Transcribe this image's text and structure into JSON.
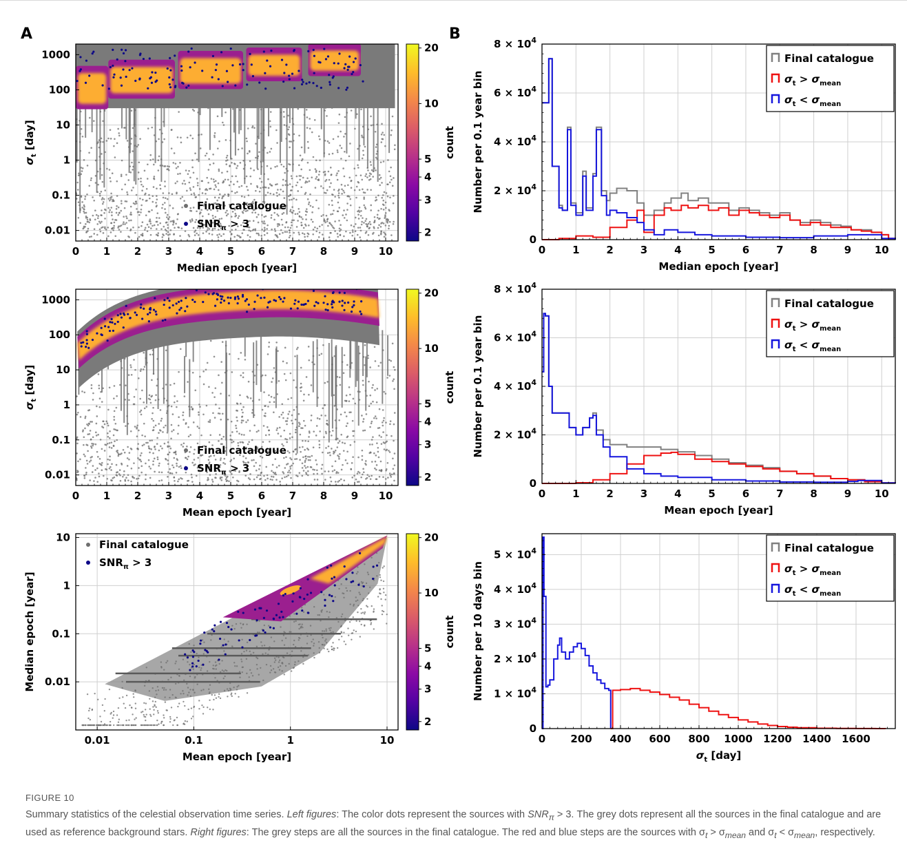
{
  "panel_labels": [
    "A",
    "B"
  ],
  "caption": {
    "figure_label": "FIGURE 10",
    "text_1": "Summary statistics of the celestial observation time series. ",
    "left_label": "Left figures",
    "text_2": ": The color dots represent the sources with ",
    "snr_label": "SNR",
    "snr_sub": "π",
    "text_3": " > 3. The grey dots represent all the sources in the final catalogue and are used as reference background stars. ",
    "right_label": "Right figures",
    "text_4": ": The grey steps are all the sources in the final catalogue. The red and blue steps are the sources with σ",
    "sub_t1": "t",
    "text_5": " > σ",
    "sub_mean1": "mean",
    "text_6": " and σ",
    "sub_t2": "t",
    "text_7": " < σ",
    "sub_mean2": "mean",
    "text_8": ", respectively."
  },
  "colors": {
    "grey_dots": "#6e6e6e",
    "snr_dots": "#0d0887",
    "grey_step": "#808080",
    "red_step": "#ee1111",
    "blue_step": "#1515dd",
    "colormap": [
      "#0d0887",
      "#5302a3",
      "#8b0aa5",
      "#b83289",
      "#db5c68",
      "#f48849",
      "#febd2a",
      "#f0f921"
    ],
    "core_color": "#fdad32"
  },
  "chart_data": [
    {
      "id": "A1",
      "type": "scatter",
      "xlabel": "Median epoch [year]",
      "ylabel": "σ_t [day]",
      "xscale": "linear",
      "yscale": "log",
      "xlim": [
        0,
        10.4
      ],
      "ylim": [
        0.005,
        2000
      ],
      "xticks": [
        "0",
        "1",
        "2",
        "3",
        "4",
        "5",
        "6",
        "7",
        "8",
        "9",
        "10"
      ],
      "yticks": [
        "1000",
        "100",
        "10",
        "1",
        "0.1",
        "0.01"
      ],
      "legend": [
        "Final catalogue",
        "SNR_π > 3"
      ],
      "legend_position": "bottom-center",
      "colorbar_label": "count",
      "colorbar_ticks": [
        "20",
        "10",
        "5",
        "4",
        "3",
        "2"
      ],
      "grid": true,
      "clusters": [
        {
          "x": [
            0.0,
            1.05
          ],
          "y": [
            40,
            300
          ]
        },
        {
          "x": [
            1.05,
            3.2
          ],
          "y": [
            80,
            450
          ]
        },
        {
          "x": [
            3.3,
            5.4
          ],
          "y": [
            150,
            800
          ]
        },
        {
          "x": [
            5.5,
            7.3
          ],
          "y": [
            250,
            1000
          ]
        },
        {
          "x": [
            7.5,
            9.2
          ],
          "y": [
            350,
            1300
          ]
        }
      ]
    },
    {
      "id": "A2",
      "type": "scatter",
      "xlabel": "Mean epoch [year]",
      "ylabel": "σ_t [day]",
      "xscale": "linear",
      "yscale": "log",
      "xlim": [
        0,
        10.4
      ],
      "ylim": [
        0.005,
        2000
      ],
      "xticks": [
        "0",
        "1",
        "2",
        "3",
        "4",
        "5",
        "6",
        "7",
        "8",
        "9",
        "10"
      ],
      "yticks": [
        "1000",
        "100",
        "10",
        "1",
        "0.1",
        "0.01"
      ],
      "legend": [
        "Final catalogue",
        "SNR_π > 3"
      ],
      "legend_position": "bottom-center",
      "colorbar_label": "count",
      "colorbar_ticks": [
        "20",
        "10",
        "5",
        "4",
        "3",
        "2"
      ],
      "grid": true
    },
    {
      "id": "A3",
      "type": "scatter",
      "xlabel": "Mean epoch [year]",
      "ylabel": "Median epoch [year]",
      "xscale": "log",
      "yscale": "log",
      "xlim": [
        0.006,
        13
      ],
      "ylim": [
        0.001,
        12
      ],
      "xticks": [
        "0.01",
        "0.1",
        "1",
        "10"
      ],
      "yticks": [
        "10",
        "1",
        "0.1",
        "0.01"
      ],
      "legend": [
        "Final catalogue",
        "SNR_π > 3"
      ],
      "legend_position": "top-left",
      "colorbar_label": "count",
      "colorbar_ticks": [
        "20",
        "10",
        "5",
        "4",
        "3",
        "2"
      ],
      "grid": true
    },
    {
      "id": "B1",
      "type": "line",
      "xlabel": "Median epoch [year]",
      "ylabel": "Number per 0.1 year bin",
      "xlim": [
        0,
        10.4
      ],
      "ylim": [
        0,
        80000
      ],
      "xticks": [
        "0",
        "1",
        "2",
        "3",
        "4",
        "5",
        "6",
        "7",
        "8",
        "9",
        "10"
      ],
      "yticks": [
        "8 × 10^4",
        "6 × 10^4",
        "4 × 10^4",
        "2 × 10^4",
        "0"
      ],
      "legend": [
        "Final catalogue",
        "σ_t > σ_mean",
        "σ_t < σ_mean"
      ],
      "legend_position": "top-right",
      "grid": true,
      "series": [
        {
          "name": "Final catalogue",
          "x": [
            0,
            0.2,
            0.3,
            0.5,
            0.6,
            0.75,
            0.85,
            1.0,
            1.2,
            1.3,
            1.5,
            1.6,
            1.75,
            1.9,
            2.0,
            2.2,
            2.5,
            2.8,
            3.0,
            3.3,
            3.6,
            3.8,
            4.1,
            4.3,
            4.6,
            4.9,
            5.2,
            5.5,
            5.8,
            6.1,
            6.4,
            6.7,
            7.0,
            7.3,
            7.6,
            7.9,
            8.2,
            8.5,
            8.8,
            9.1,
            9.4,
            9.7,
            10.0,
            10.2,
            10.4
          ],
          "y": [
            56000,
            74000,
            30000,
            14000,
            12000,
            46000,
            15000,
            11000,
            28000,
            13000,
            27000,
            46000,
            20000,
            16000,
            19000,
            21000,
            20000,
            15000,
            10000,
            12000,
            15000,
            17000,
            19000,
            16000,
            17000,
            15000,
            15000,
            12000,
            13000,
            12000,
            11000,
            10000,
            11000,
            8000,
            7000,
            8000,
            7000,
            6000,
            5500,
            4000,
            4000,
            3000,
            2000,
            500,
            0
          ]
        },
        {
          "name": "σ_t > σ_mean",
          "x": [
            0,
            0.5,
            1.0,
            1.5,
            2.0,
            2.5,
            2.8,
            3.0,
            3.3,
            3.6,
            3.8,
            4.1,
            4.3,
            4.6,
            4.9,
            5.2,
            5.5,
            5.8,
            6.1,
            6.4,
            6.7,
            7.0,
            7.3,
            7.6,
            7.9,
            8.2,
            8.5,
            8.8,
            9.1,
            9.4,
            9.7,
            10.0,
            10.2,
            10.4
          ],
          "y": [
            0,
            500,
            1500,
            1000,
            5000,
            8000,
            12000,
            3000,
            10000,
            13000,
            12000,
            14000,
            13000,
            14000,
            12000,
            13000,
            10000,
            12000,
            11000,
            10000,
            9000,
            10000,
            8000,
            6000,
            7000,
            6000,
            5000,
            5000,
            4000,
            3500,
            3000,
            2000,
            500,
            0
          ]
        },
        {
          "name": "σ_t < σ_mean",
          "x": [
            0,
            0.2,
            0.3,
            0.5,
            0.6,
            0.75,
            0.85,
            1.0,
            1.2,
            1.3,
            1.5,
            1.6,
            1.75,
            1.9,
            2.0,
            2.2,
            2.5,
            2.8,
            3.0,
            3.3,
            3.6,
            4.0,
            4.5,
            5.0,
            6.0,
            7.0,
            8.0,
            9.0,
            10.0,
            10.4
          ],
          "y": [
            56000,
            74000,
            30000,
            13000,
            12000,
            45000,
            14000,
            10000,
            26000,
            12000,
            26000,
            45000,
            18000,
            10000,
            12000,
            11000,
            9000,
            7000,
            4000,
            2000,
            4000,
            3000,
            2000,
            1500,
            1000,
            800,
            1500,
            2000,
            500,
            0
          ]
        }
      ]
    },
    {
      "id": "B2",
      "type": "line",
      "xlabel": "Mean epoch [year]",
      "ylabel": "Number per 0.1 year bin",
      "xlim": [
        0,
        10.4
      ],
      "ylim": [
        0,
        80000
      ],
      "xticks": [
        "0",
        "1",
        "2",
        "3",
        "4",
        "5",
        "6",
        "7",
        "8",
        "9",
        "10"
      ],
      "yticks": [
        "8 × 10^4",
        "6 × 10^4",
        "4 × 10^4",
        "2 × 10^4",
        "0"
      ],
      "legend": [
        "Final catalogue",
        "σ_t > σ_mean",
        "σ_t < σ_mean"
      ],
      "legend_position": "top-right",
      "grid": true,
      "series": [
        {
          "name": "Final catalogue",
          "x": [
            0,
            0.05,
            0.1,
            0.2,
            0.3,
            0.5,
            0.6,
            0.8,
            1.0,
            1.2,
            1.4,
            1.5,
            1.6,
            1.8,
            2.0,
            2.5,
            3.0,
            3.5,
            4.0,
            4.5,
            5.0,
            5.5,
            6.0,
            6.5,
            7.0,
            7.5,
            8.0,
            8.5,
            9.0,
            9.5,
            10.0,
            10.4
          ],
          "y": [
            46000,
            70000,
            69000,
            40000,
            29000,
            29000,
            29000,
            23000,
            20000,
            23000,
            27000,
            29000,
            22000,
            18000,
            16000,
            15000,
            15000,
            14000,
            13000,
            11500,
            10000,
            8500,
            7500,
            6500,
            5000,
            4000,
            3000,
            2000,
            1500,
            700,
            200,
            0
          ]
        },
        {
          "name": "σ_t > σ_mean",
          "x": [
            0,
            0.5,
            1.0,
            1.5,
            2.0,
            2.5,
            3.0,
            3.5,
            3.8,
            4.0,
            4.5,
            5.0,
            5.5,
            6.0,
            6.5,
            7.0,
            7.5,
            8.0,
            8.5,
            9.0,
            9.5,
            10.0,
            10.4
          ],
          "y": [
            0,
            0,
            300,
            1500,
            4000,
            8000,
            11500,
            12500,
            12800,
            12000,
            10000,
            9000,
            8000,
            7000,
            6000,
            5000,
            4000,
            3000,
            2000,
            1500,
            700,
            200,
            0
          ]
        },
        {
          "name": "σ_t < σ_mean",
          "x": [
            0,
            0.05,
            0.1,
            0.2,
            0.3,
            0.5,
            0.6,
            0.8,
            1.0,
            1.2,
            1.4,
            1.5,
            1.6,
            1.8,
            2.0,
            2.5,
            3.0,
            3.5,
            4.0,
            5.0,
            6.0,
            7.0,
            8.0,
            9.0,
            9.3,
            10.0,
            10.4
          ],
          "y": [
            46000,
            70000,
            69000,
            40000,
            29000,
            29000,
            29000,
            23000,
            20000,
            23000,
            27000,
            28000,
            20000,
            15000,
            11000,
            6000,
            4000,
            3000,
            2500,
            1500,
            1000,
            600,
            500,
            800,
            1200,
            200,
            0
          ]
        }
      ]
    },
    {
      "id": "B3",
      "type": "line",
      "xlabel": "σ_t [day]",
      "ylabel": "Number per 10 days bin",
      "xlim": [
        0,
        1800
      ],
      "ylim": [
        0,
        56000
      ],
      "xticks": [
        "0",
        "200",
        "400",
        "600",
        "800",
        "1000",
        "1200",
        "1400",
        "1600"
      ],
      "yticks": [
        "5 × 10^4",
        "4 × 10^4",
        "3 × 10^4",
        "2 × 10^4",
        "1 × 10^4",
        "0"
      ],
      "legend": [
        "Final catalogue",
        "σ_t > σ_mean",
        "σ_t < σ_mean"
      ],
      "legend_position": "top-right",
      "grid": true,
      "series": [
        {
          "name": "σ_t < σ_mean",
          "x": [
            0,
            5,
            10,
            20,
            30,
            40,
            60,
            80,
            90,
            100,
            120,
            140,
            160,
            180,
            200,
            220,
            240,
            260,
            280,
            300,
            320,
            340,
            350,
            350
          ],
          "y": [
            0,
            55000,
            38000,
            12000,
            12500,
            14000,
            20000,
            24000,
            26000,
            22000,
            20000,
            22000,
            23500,
            24500,
            23000,
            21000,
            18000,
            16000,
            14000,
            13000,
            11500,
            11000,
            11000,
            0
          ]
        },
        {
          "name": "σ_t > σ_mean",
          "x": [
            350,
            360,
            400,
            450,
            500,
            550,
            600,
            650,
            700,
            750,
            800,
            850,
            900,
            950,
            1000,
            1050,
            1100,
            1150,
            1200,
            1250,
            1300,
            1400,
            1500,
            1600,
            1700,
            1750
          ],
          "y": [
            0,
            11000,
            11200,
            11500,
            11000,
            10500,
            9800,
            9000,
            8200,
            7000,
            6000,
            5000,
            4000,
            3200,
            2500,
            1900,
            1300,
            900,
            600,
            400,
            250,
            100,
            50,
            20,
            10,
            0
          ]
        }
      ]
    }
  ]
}
